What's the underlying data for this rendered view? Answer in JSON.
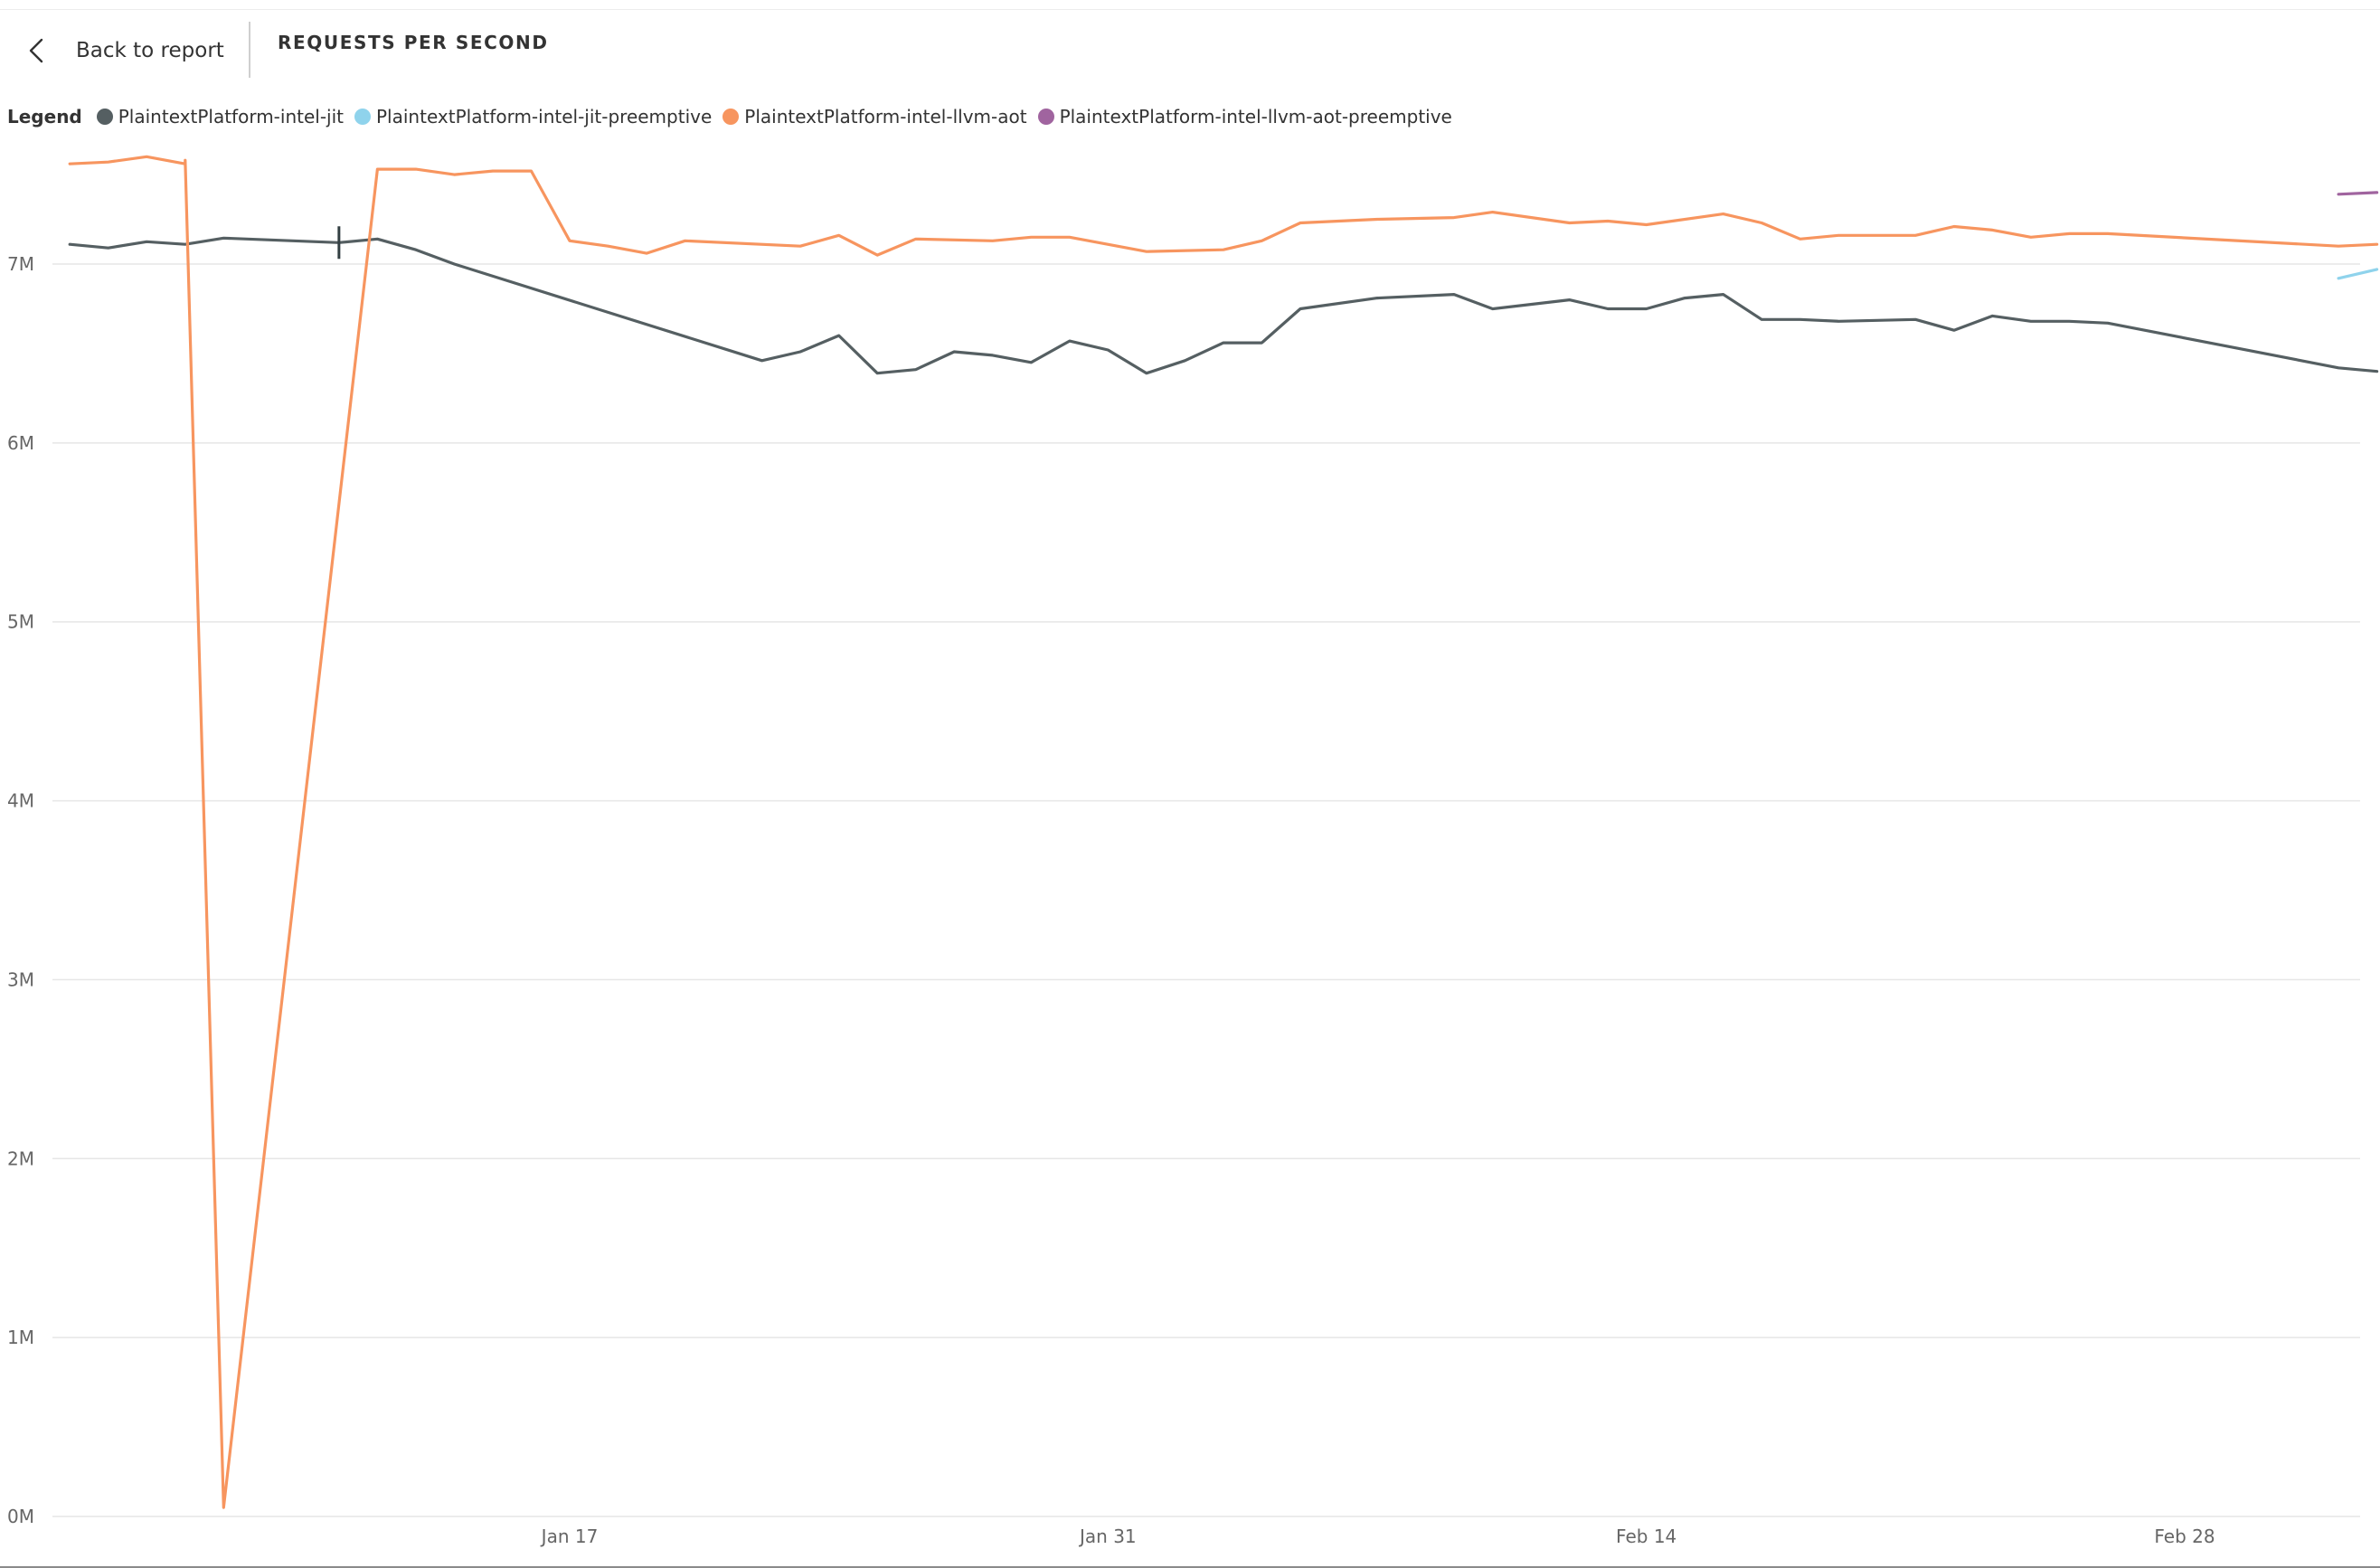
{
  "header": {
    "back_label": "Back to report",
    "title": "REQUESTS PER SECOND"
  },
  "legend": {
    "title": "Legend"
  },
  "chart_data": {
    "type": "line",
    "title": "REQUESTS PER SECOND",
    "xlabel": "",
    "ylabel": "",
    "ylim": [
      0,
      7600000
    ],
    "xlim": [
      "2020-12-31",
      "2021-03-05"
    ],
    "x_ticks": [
      "Jan 17",
      "Jan 31",
      "Feb 14",
      "Feb 28"
    ],
    "x_tick_dates": [
      "2021-01-17",
      "2021-01-31",
      "2021-02-14",
      "2021-02-28"
    ],
    "y_ticks": [
      0,
      1000000,
      2000000,
      3000000,
      4000000,
      5000000,
      6000000,
      7000000
    ],
    "y_tick_labels": [
      "0M",
      "1M",
      "2M",
      "3M",
      "4M",
      "5M",
      "6M",
      "7M"
    ],
    "grid": true,
    "legend_position": "top-left",
    "series": [
      {
        "name": "PlaintextPlatform-intel-jit",
        "color": "#555f62",
        "points": [
          [
            "2021-01-04",
            7110000
          ],
          [
            "2021-01-05",
            7090000
          ],
          [
            "2021-01-06",
            7125000
          ],
          [
            "2021-01-07",
            7110000
          ],
          [
            "2021-01-08",
            7145000
          ],
          [
            "2021-01-11",
            7120000
          ],
          [
            "2021-01-12",
            7140000
          ],
          [
            "2021-01-13",
            7080000
          ],
          [
            "2021-01-14",
            7000000
          ],
          [
            "2021-01-22",
            6460000
          ],
          [
            "2021-01-23",
            6510000
          ],
          [
            "2021-01-24",
            6600000
          ],
          [
            "2021-01-25",
            6390000
          ],
          [
            "2021-01-26",
            6410000
          ],
          [
            "2021-01-27",
            6510000
          ],
          [
            "2021-01-28",
            6490000
          ],
          [
            "2021-01-29",
            6450000
          ],
          [
            "2021-01-30",
            6570000
          ],
          [
            "2021-01-31",
            6520000
          ],
          [
            "2021-02-01",
            6390000
          ],
          [
            "2021-02-02",
            6460000
          ],
          [
            "2021-02-03",
            6560000
          ],
          [
            "2021-02-04",
            6560000
          ],
          [
            "2021-02-05",
            6750000
          ],
          [
            "2021-02-07",
            6810000
          ],
          [
            "2021-02-09",
            6830000
          ],
          [
            "2021-02-10",
            6750000
          ],
          [
            "2021-02-12",
            6800000
          ],
          [
            "2021-02-13",
            6750000
          ],
          [
            "2021-02-14",
            6750000
          ],
          [
            "2021-02-15",
            6810000
          ],
          [
            "2021-02-16",
            6830000
          ],
          [
            "2021-02-17",
            6690000
          ],
          [
            "2021-02-18",
            6690000
          ],
          [
            "2021-02-19",
            6680000
          ],
          [
            "2021-02-21",
            6690000
          ],
          [
            "2021-02-22",
            6630000
          ],
          [
            "2021-02-23",
            6710000
          ],
          [
            "2021-02-24",
            6680000
          ],
          [
            "2021-02-25",
            6680000
          ],
          [
            "2021-02-26",
            6670000
          ],
          [
            "2021-03-04",
            6420000
          ],
          [
            "2021-03-05",
            6400000
          ]
        ]
      },
      {
        "name": "PlaintextPlatform-intel-jit-preemptive",
        "color": "#8fd3ec",
        "points": [
          [
            "2021-03-04",
            6920000
          ],
          [
            "2021-03-05",
            6970000
          ]
        ]
      },
      {
        "name": "PlaintextPlatform-intel-llvm-aot",
        "color": "#f7955f",
        "points": [
          [
            "2021-01-04",
            7560000
          ],
          [
            "2021-01-05",
            7570000
          ],
          [
            "2021-01-06",
            7600000
          ],
          [
            "2021-01-07",
            7560000
          ],
          [
            "2021-01-07",
            7580000
          ],
          [
            "2021-01-08",
            50000
          ],
          [
            "2021-01-12",
            7530000
          ],
          [
            "2021-01-13",
            7530000
          ],
          [
            "2021-01-14",
            7500000
          ],
          [
            "2021-01-15",
            7520000
          ],
          [
            "2021-01-16",
            7520000
          ],
          [
            "2021-01-17",
            7130000
          ],
          [
            "2021-01-18",
            7100000
          ],
          [
            "2021-01-19",
            7060000
          ],
          [
            "2021-01-20",
            7130000
          ],
          [
            "2021-01-23",
            7100000
          ],
          [
            "2021-01-24",
            7160000
          ],
          [
            "2021-01-25",
            7050000
          ],
          [
            "2021-01-26",
            7140000
          ],
          [
            "2021-01-28",
            7130000
          ],
          [
            "2021-01-29",
            7150000
          ],
          [
            "2021-01-30",
            7150000
          ],
          [
            "2021-02-01",
            7070000
          ],
          [
            "2021-02-03",
            7080000
          ],
          [
            "2021-02-04",
            7130000
          ],
          [
            "2021-02-05",
            7230000
          ],
          [
            "2021-02-07",
            7250000
          ],
          [
            "2021-02-09",
            7260000
          ],
          [
            "2021-02-10",
            7290000
          ],
          [
            "2021-02-12",
            7230000
          ],
          [
            "2021-02-13",
            7240000
          ],
          [
            "2021-02-14",
            7220000
          ],
          [
            "2021-02-16",
            7280000
          ],
          [
            "2021-02-17",
            7230000
          ],
          [
            "2021-02-18",
            7140000
          ],
          [
            "2021-02-19",
            7160000
          ],
          [
            "2021-02-21",
            7160000
          ],
          [
            "2021-02-22",
            7210000
          ],
          [
            "2021-02-23",
            7190000
          ],
          [
            "2021-02-24",
            7150000
          ],
          [
            "2021-02-25",
            7170000
          ],
          [
            "2021-02-26",
            7170000
          ],
          [
            "2021-03-04",
            7100000
          ],
          [
            "2021-03-05",
            7110000
          ]
        ]
      },
      {
        "name": "PlaintextPlatform-intel-llvm-aot-preemptive",
        "color": "#a0649f",
        "points": [
          [
            "2021-03-04",
            7390000
          ],
          [
            "2021-03-05",
            7400000
          ]
        ]
      }
    ],
    "annotations": [
      {
        "marker": "cursor",
        "x": "2021-01-11",
        "y": 7120000
      }
    ]
  }
}
